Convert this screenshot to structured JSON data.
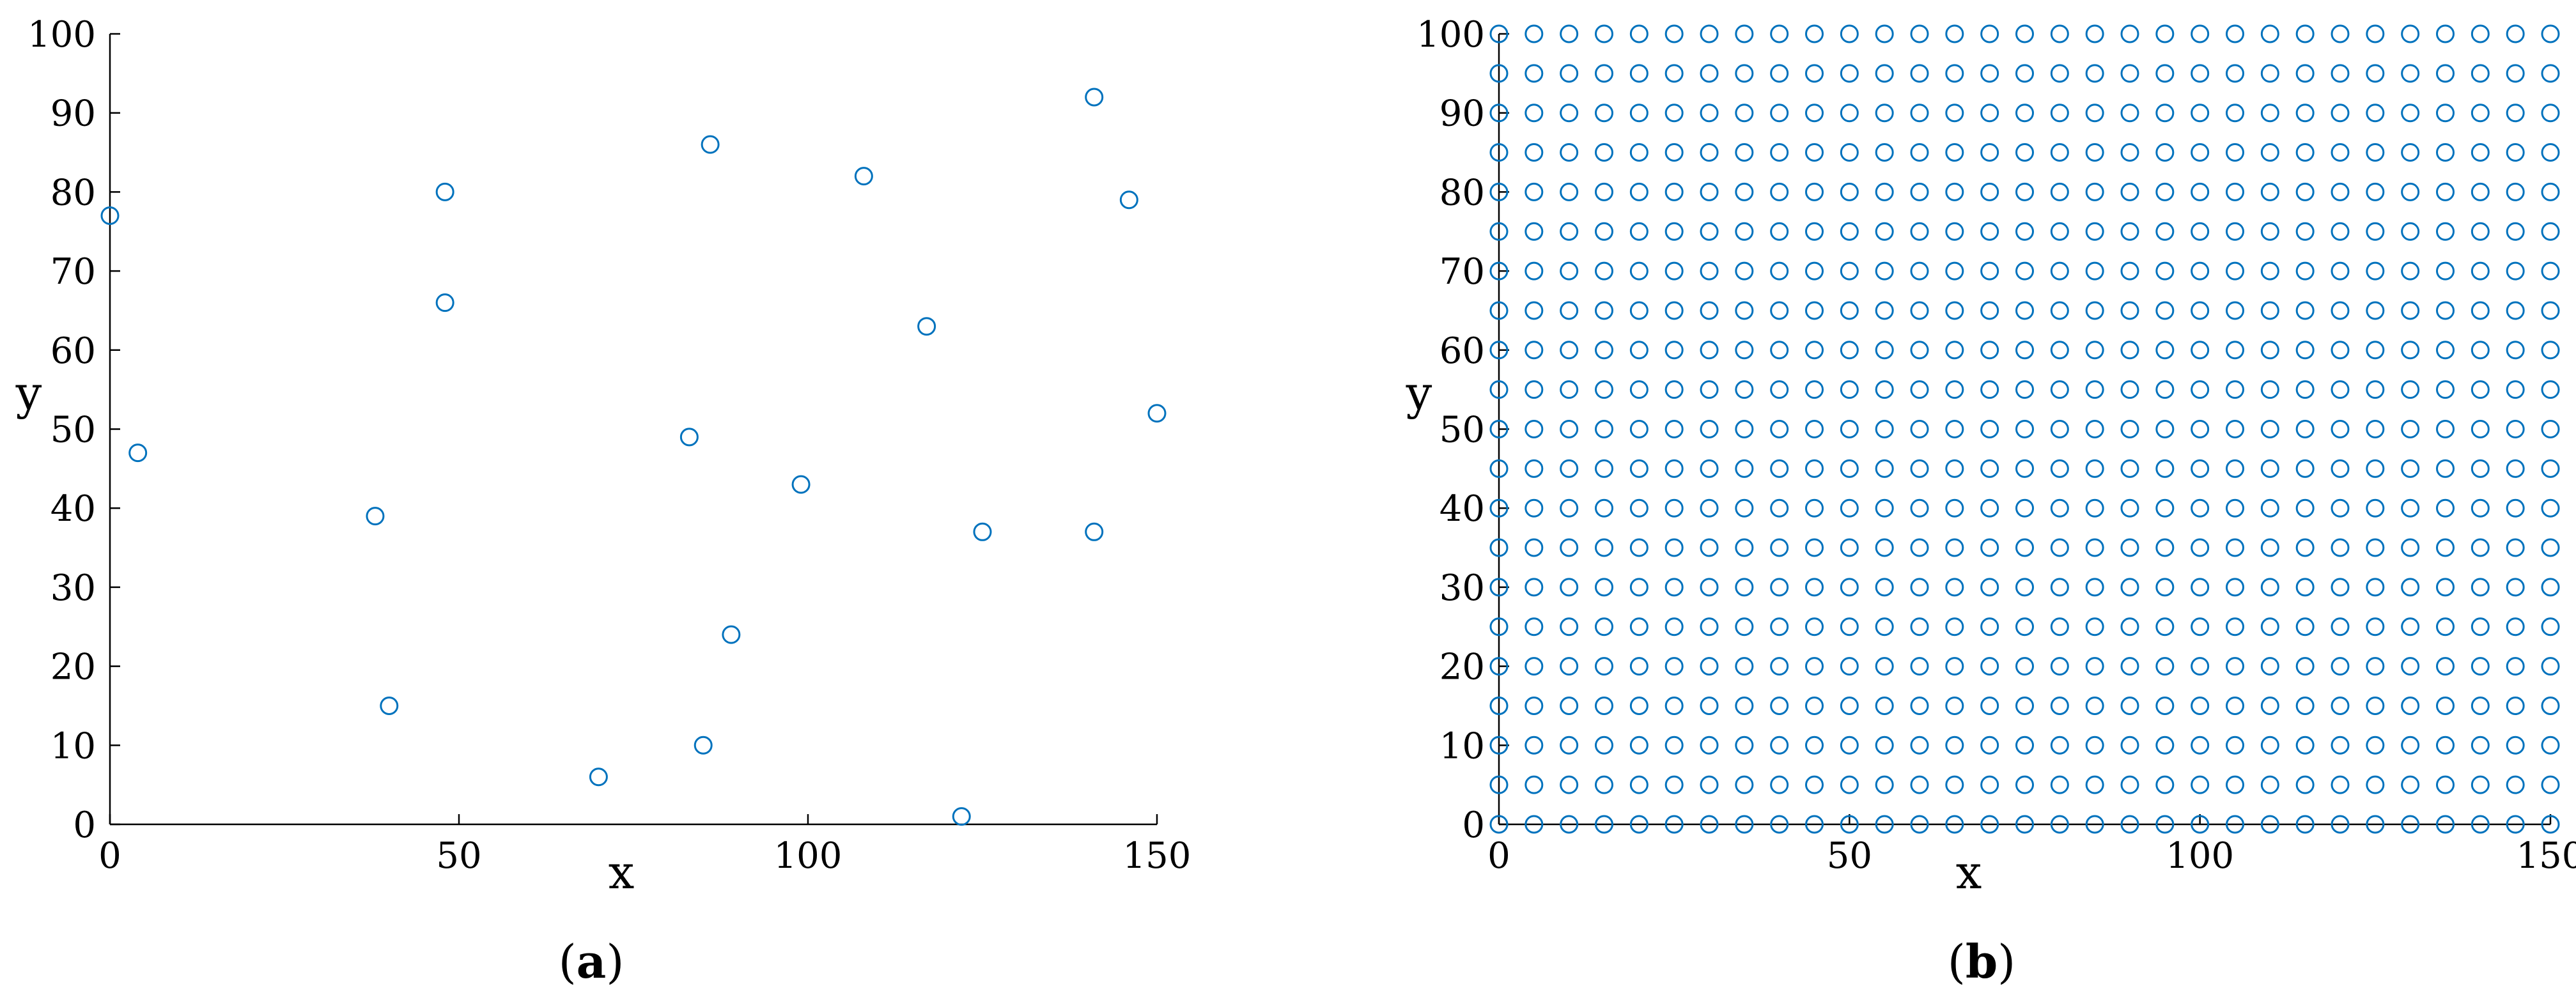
{
  "chart_data": [
    {
      "type": "scatter",
      "panel_label": {
        "open": "(",
        "letter": "a",
        "close": ")"
      },
      "xlabel": "x",
      "ylabel": "y",
      "xlim": [
        0,
        150
      ],
      "ylim": [
        0,
        100
      ],
      "xticks": [
        0,
        50,
        100,
        150
      ],
      "yticks": [
        0,
        10,
        20,
        30,
        40,
        50,
        60,
        70,
        80,
        90,
        100
      ],
      "marker": "circle-open",
      "color": "#0072BD",
      "grid": false,
      "points": [
        {
          "x": 0,
          "y": 77
        },
        {
          "x": 4,
          "y": 47
        },
        {
          "x": 38,
          "y": 39
        },
        {
          "x": 40,
          "y": 15
        },
        {
          "x": 48,
          "y": 80
        },
        {
          "x": 48,
          "y": 66
        },
        {
          "x": 70,
          "y": 6
        },
        {
          "x": 83,
          "y": 49
        },
        {
          "x": 85,
          "y": 10
        },
        {
          "x": 86,
          "y": 86
        },
        {
          "x": 89,
          "y": 24
        },
        {
          "x": 99,
          "y": 43
        },
        {
          "x": 108,
          "y": 82
        },
        {
          "x": 117,
          "y": 63
        },
        {
          "x": 122,
          "y": 1
        },
        {
          "x": 125,
          "y": 37
        },
        {
          "x": 141,
          "y": 92
        },
        {
          "x": 141,
          "y": 37
        },
        {
          "x": 146,
          "y": 79
        },
        {
          "x": 150,
          "y": 52
        }
      ]
    },
    {
      "type": "scatter",
      "panel_label": {
        "open": "(",
        "letter": "b",
        "close": ")"
      },
      "xlabel": "x",
      "ylabel": "y",
      "xlim": [
        0,
        150
      ],
      "ylim": [
        0,
        100
      ],
      "xticks": [
        0,
        50,
        100,
        150
      ],
      "yticks": [
        0,
        10,
        20,
        30,
        40,
        50,
        60,
        70,
        80,
        90,
        100
      ],
      "marker": "circle-open",
      "color": "#0072BD",
      "grid": false,
      "points_grid": {
        "x_start": 0,
        "x_end": 150,
        "x_step": 5,
        "y_start": 0,
        "y_end": 100,
        "y_step": 5
      }
    }
  ]
}
